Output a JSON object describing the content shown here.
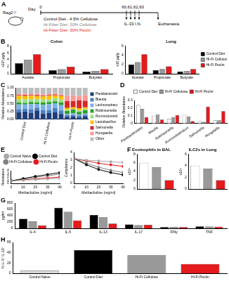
{
  "diagram": {
    "panel": "A",
    "mouse": "Rag2⁻/⁻",
    "day_label": "Day",
    "days": [
      "0",
      "60,61,62,63"
    ],
    "diets": [
      {
        "text": "Control Diet - 4.5% Cellulose",
        "color": "#000000"
      },
      {
        "text": "Hi-Fiber Diet- 30% Cellulose",
        "color": "#808080"
      },
      {
        "text": "Hi-Fiber Diet- 30% Pectin",
        "color": "#e41a1c"
      }
    ],
    "treatment": "IL-33 I.N.",
    "endpoint": "Euthanasia"
  },
  "chart_data": [
    {
      "type": "bar",
      "panel": "B",
      "title": "Colon",
      "y_label": "x10³ µg/g",
      "categories": [
        "Acetate",
        "Propionate",
        "Butyrate"
      ],
      "series": [
        {
          "name": "Control Diet",
          "color": "#000000",
          "values": [
            3.0,
            1.0,
            0.6
          ]
        },
        {
          "name": "Hi-Fi Cellulose",
          "color": "#999999",
          "values": [
            4.0,
            1.3,
            0.8
          ]
        },
        {
          "name": "Hi-Fi Pectin",
          "color": "#e41a1c",
          "values": [
            5.6,
            2.0,
            1.3
          ]
        }
      ],
      "ylim": [
        0,
        8
      ],
      "yticks": [
        0,
        2,
        4,
        6,
        8
      ],
      "grid": false
    },
    {
      "type": "bar",
      "title": "Lung",
      "y_label": "x10 µg/g",
      "categories": [
        "Acetate",
        "Propionate",
        "Butyrate"
      ],
      "series": [
        {
          "name": "Control Diet",
          "color": "#000000",
          "values": [
            2.0,
            0.8,
            0.5
          ]
        },
        {
          "name": "Hi-Fi Cellulose",
          "color": "#999999",
          "values": [
            2.5,
            1.0,
            0.6
          ]
        },
        {
          "name": "Hi-Fi Pectin",
          "color": "#e41a1c",
          "values": [
            4.2,
            1.6,
            1.0
          ]
        }
      ],
      "ylim": [
        0,
        6
      ],
      "yticks": [
        0,
        2,
        4,
        6
      ],
      "grid": false,
      "legend": "right"
    },
    {
      "type": "bar",
      "panel": "C",
      "stacked": true,
      "y_label": "Relative Abundance",
      "legend": "right",
      "categories": [
        null,
        "Control Diet",
        null,
        null,
        null,
        "Hi-Fi Cellulose",
        null,
        null,
        null,
        "Hi-Fi Pectin",
        null,
        null
      ],
      "series": [
        {
          "name": "Parabacteroides",
          "color": "#1f3d7a",
          "values": [
            0.22,
            0.25,
            0.2,
            0.28,
            0.18,
            0.2,
            0.22,
            0.17,
            0.08,
            0.1,
            0.06,
            0.09
          ]
        },
        {
          "name": "Blautia",
          "color": "#4a7fc1",
          "values": [
            0.1,
            0.08,
            0.12,
            0.09,
            0.12,
            0.1,
            0.14,
            0.11,
            0.05,
            0.04,
            0.06,
            0.05
          ]
        },
        {
          "name": "Lachnospiraceae (Unc004is)",
          "color": "#7fb2e5",
          "values": [
            0.15,
            0.14,
            0.16,
            0.12,
            0.16,
            0.18,
            0.15,
            0.17,
            0.04,
            0.05,
            0.03,
            0.04
          ]
        },
        {
          "name": "Robinsoniella",
          "color": "#2ca02c",
          "values": [
            0.06,
            0.05,
            0.07,
            0.05,
            0.08,
            0.07,
            0.06,
            0.09,
            0.1,
            0.12,
            0.09,
            0.11
          ]
        },
        {
          "name": "Ruminiclostridium",
          "color": "#98df8a",
          "values": [
            0.1,
            0.12,
            0.09,
            0.11,
            0.09,
            0.08,
            0.1,
            0.09,
            0.03,
            0.02,
            0.04,
            0.03
          ]
        },
        {
          "name": "Lactobacillus",
          "color": "#ffbf00",
          "values": [
            0.12,
            0.1,
            0.11,
            0.09,
            0.1,
            0.12,
            0.09,
            0.11,
            0.06,
            0.05,
            0.07,
            0.06
          ]
        },
        {
          "name": "Salmonella",
          "color": "#d62728",
          "values": [
            0.02,
            0.03,
            0.02,
            0.03,
            0.02,
            0.02,
            0.03,
            0.02,
            0.22,
            0.2,
            0.25,
            0.21
          ]
        },
        {
          "name": "Hungatella",
          "color": "#ff9896",
          "values": [
            0.03,
            0.04,
            0.03,
            0.04,
            0.04,
            0.03,
            0.04,
            0.03,
            0.16,
            0.18,
            0.14,
            0.17
          ]
        },
        {
          "name": "Other",
          "color": "#bdbdbd",
          "values": [
            0.2,
            0.19,
            0.2,
            0.19,
            0.21,
            0.2,
            0.17,
            0.21,
            0.26,
            0.24,
            0.26,
            0.24
          ]
        }
      ],
      "ylim": [
        0,
        1
      ],
      "yticks": [
        {
          "value": 0,
          "label": "0.00"
        },
        {
          "value": 0.25,
          "label": "0.25"
        },
        {
          "value": 0.5,
          "label": "0.50"
        },
        {
          "value": 0.75,
          "label": "0.75"
        },
        {
          "value": 1,
          "label": "1.00"
        }
      ],
      "grid": false
    },
    {
      "type": "bar",
      "panel": "D",
      "y_label": "Relative Abundance",
      "legend": "top",
      "categories": [
        "Parabacteroides",
        "Blautia",
        "Robinsoniella",
        "Ruminiclostridium",
        "Salmonella",
        "Hungatella"
      ],
      "series": [
        {
          "name": "Control Diet",
          "color": "#ffffff",
          "values": [
            0.24,
            0.1,
            0.06,
            0.11,
            0.03,
            0.04
          ]
        },
        {
          "name": "Hi-Fi Cellulose",
          "color": "#999999",
          "values": [
            0.19,
            0.12,
            0.08,
            0.09,
            0.02,
            0.04
          ]
        },
        {
          "name": "Hi-Fi Pectin",
          "color": "#e41a1c",
          "values": [
            0.08,
            0.05,
            0.11,
            0.03,
            0.22,
            0.16
          ]
        }
      ],
      "ylim": [
        0,
        0.3
      ],
      "yticks": [
        0,
        0.1,
        0.2,
        0.3
      ],
      "grid": false
    },
    {
      "type": "line",
      "panel": "E",
      "marker": "circle",
      "line_style": "solid",
      "legend": "top",
      "x_label": "Methacholine (mg/ml)",
      "y_label": "Resistance",
      "x": [
        0,
        10,
        20,
        30,
        40
      ],
      "xlim": [
        0,
        40
      ],
      "xticks": [
        0,
        10,
        20,
        30,
        40
      ],
      "series": [
        {
          "name": "Control Naive",
          "color": "#a6a6a6",
          "values": [
            0.8,
            1.0,
            1.2,
            1.4,
            1.6
          ]
        },
        {
          "name": "Control Diet",
          "color": "#000000",
          "values": [
            0.8,
            1.5,
            2.2,
            2.8,
            3.4
          ]
        },
        {
          "name": "Hi-Fi Cellulose",
          "color": "#808080",
          "values": [
            0.8,
            1.3,
            1.9,
            2.4,
            2.9
          ]
        },
        {
          "name": "Hi-Fi Pectin",
          "color": "#e41a1c",
          "values": [
            0.8,
            1.1,
            1.4,
            1.7,
            2.0
          ]
        }
      ],
      "ylim": [
        0,
        4
      ],
      "yticks": [
        0,
        1,
        2,
        3,
        4
      ],
      "grid": false
    },
    {
      "type": "line",
      "marker": "circle",
      "line_style": "solid",
      "x_label": "Methacholine (mg/ml)",
      "y_label": "Compliance",
      "x": [
        0,
        10,
        20,
        30,
        40
      ],
      "xlim": [
        0,
        40
      ],
      "xticks": [
        0,
        10,
        20,
        30,
        40
      ],
      "series": [
        {
          "name": "Control Naive",
          "color": "#a6a6a6",
          "values": [
            3.2,
            3.0,
            2.9,
            2.8,
            2.7
          ]
        },
        {
          "name": "Control Diet",
          "color": "#000000",
          "values": [
            3.2,
            2.4,
            1.8,
            1.4,
            1.1
          ]
        },
        {
          "name": "Hi-Fi Cellulose",
          "color": "#808080",
          "values": [
            3.2,
            2.6,
            2.1,
            1.7,
            1.4
          ]
        },
        {
          "name": "Hi-Fi Pectin",
          "color": "#e41a1c",
          "values": [
            3.2,
            2.9,
            2.6,
            2.4,
            2.2
          ]
        }
      ],
      "ylim": [
        0,
        4
      ],
      "yticks": [
        0,
        1,
        2,
        3,
        4
      ],
      "grid": false
    },
    {
      "type": "bar",
      "panel": "F",
      "title": "Eosinophils in BAL",
      "y_label": "x10⁴",
      "categories": [
        null,
        null,
        null
      ],
      "values": [
        6,
        5,
        2
      ],
      "colors": [
        "#ffffff",
        "#999999",
        "#e41a1c"
      ],
      "ylim": [
        0,
        8
      ],
      "yticks": [
        0,
        2,
        4,
        6,
        8
      ],
      "grid": false
    },
    {
      "type": "bar",
      "title": "ILC2s in Lung",
      "y_label": "x10⁴",
      "categories": [
        null,
        null,
        null
      ],
      "values": [
        4,
        3.5,
        1.5
      ],
      "colors": [
        "#ffffff",
        "#999999",
        "#e41a1c"
      ],
      "ylim": [
        0,
        6
      ],
      "yticks": [
        0,
        2,
        4,
        6
      ],
      "grid": false
    },
    {
      "type": "bar",
      "panel": "G",
      "y_label": "pg/ml",
      "categories": [
        "IL-4",
        "IL-5",
        "IL-13",
        "IL-17",
        "IFNγ",
        "TNF"
      ],
      "series": [
        {
          "name": "Control Diet",
          "color": "#000000",
          "values": [
            300,
            650,
            420,
            120,
            40,
            60
          ]
        },
        {
          "name": "Hi-Fi Cellulose",
          "color": "#999999",
          "values": [
            220,
            520,
            350,
            100,
            45,
            55
          ]
        },
        {
          "name": "Hi-Fi Pectin",
          "color": "#e41a1c",
          "values": [
            90,
            250,
            150,
            110,
            40,
            50
          ]
        }
      ],
      "ylim": [
        0,
        800
      ],
      "yticks": [
        0,
        200,
        400,
        600,
        800
      ],
      "grid": false
    },
    {
      "type": "bar",
      "panel": "H",
      "y_label": "% IL-5⁺ IL-13⁺",
      "categories": [
        "Control Naive",
        "Control Diet",
        "Hi-Fi Cellulose",
        "Hi-Fi Pectin"
      ],
      "values": [
        5,
        45,
        35,
        18
      ],
      "colors": [
        "#d9d9d9",
        "#000000",
        "#999999",
        "#e41a1c"
      ],
      "ylim": [
        0,
        60
      ],
      "yticks": [
        0,
        20,
        40,
        60
      ],
      "grid": false
    }
  ]
}
